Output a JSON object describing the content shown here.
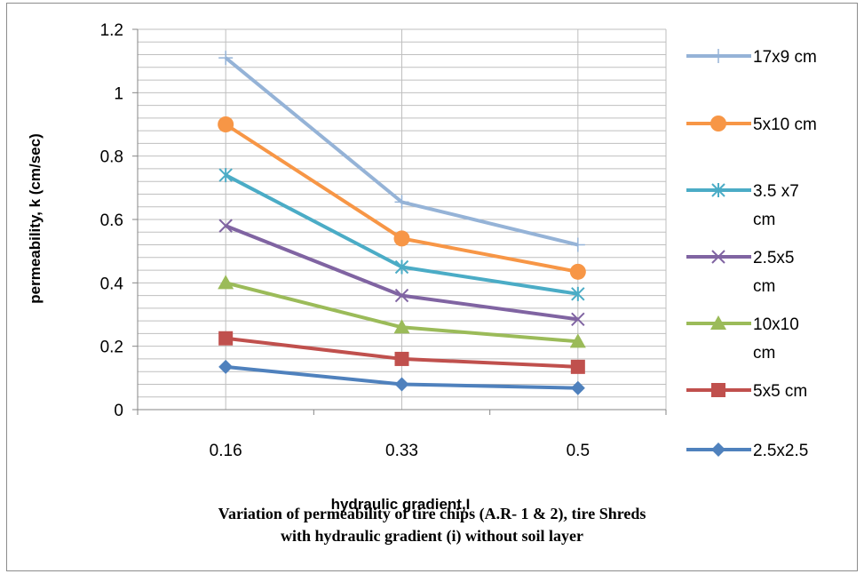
{
  "chart_data": {
    "type": "line",
    "categories": [
      "0.16",
      "0.33",
      "0.5"
    ],
    "xlabel": "hydraulic gradient,I",
    "ylabel": "permeability, k (cm/sec)",
    "ylim": [
      0,
      1.2
    ],
    "y_ticks": [
      "0",
      "0.2",
      "0.4",
      "0.6",
      "0.8",
      "1",
      "1.2"
    ],
    "grid": true,
    "legend_position": "right",
    "series": [
      {
        "name": "17x9 cm",
        "values": [
          1.11,
          0.655,
          0.52
        ],
        "color": "#95b3d7",
        "marker": "plus"
      },
      {
        "name": "5x10 cm",
        "values": [
          0.9,
          0.54,
          0.435
        ],
        "color": "#f79646",
        "marker": "circle"
      },
      {
        "name": "3.5 x7 cm",
        "values": [
          0.74,
          0.45,
          0.365
        ],
        "color": "#4bacc6",
        "marker": "star"
      },
      {
        "name": "2.5x5 cm",
        "values": [
          0.58,
          0.36,
          0.285
        ],
        "color": "#8064a2",
        "marker": "x"
      },
      {
        "name": "10x10 cm",
        "values": [
          0.4,
          0.26,
          0.215
        ],
        "color": "#9bbb59",
        "marker": "triangle"
      },
      {
        "name": "5x5 cm",
        "values": [
          0.225,
          0.16,
          0.135
        ],
        "color": "#c0504d",
        "marker": "square"
      },
      {
        "name": "2.5x2.5",
        "values": [
          0.135,
          0.08,
          0.068
        ],
        "color": "#4f81bd",
        "marker": "diamond"
      }
    ]
  },
  "caption": {
    "line1": "Variation of permeability of tire chips (A.R- 1 & 2), tire Shreds",
    "line2": "with hydraulic gradient (i) without soil layer"
  }
}
